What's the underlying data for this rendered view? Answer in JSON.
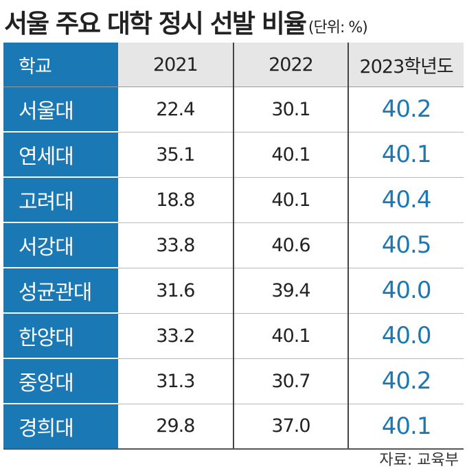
{
  "header": {
    "title": "서울 주요 대학 정시 선발 비율",
    "unit": "(단위: %)"
  },
  "table": {
    "columns": [
      "학교",
      "2021",
      "2022",
      "2023학년도"
    ],
    "rows": [
      [
        "서울대",
        "22.4",
        "30.1",
        "40.2"
      ],
      [
        "연세대",
        "35.1",
        "40.1",
        "40.1"
      ],
      [
        "고려대",
        "18.8",
        "40.1",
        "40.4"
      ],
      [
        "서강대",
        "33.8",
        "40.6",
        "40.5"
      ],
      [
        "성균관대",
        "31.6",
        "39.4",
        "40.0"
      ],
      [
        "한양대",
        "33.2",
        "40.1",
        "40.0"
      ],
      [
        "중앙대",
        "31.3",
        "30.7",
        "40.2"
      ],
      [
        "경희대",
        "29.8",
        "37.0",
        "40.1"
      ]
    ]
  },
  "footer": {
    "source": "자료: 교육부"
  }
}
